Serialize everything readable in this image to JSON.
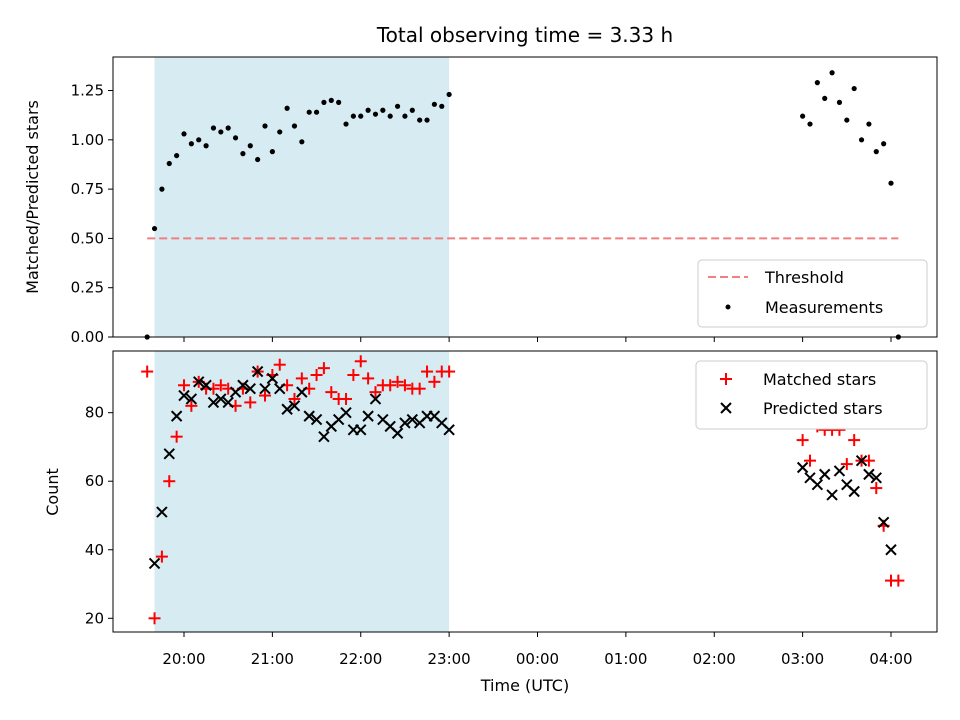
{
  "chart_data": [
    {
      "type": "scatter",
      "title": "Total observing time = 3.33 h",
      "xlabel": "",
      "ylabel": "Matched/Predicted stars",
      "x_unit": "hours since 19:00 UTC on the x axis is shown as clock times",
      "xlim": [
        "19:10",
        "04:30"
      ],
      "ylim": [
        0,
        1.42
      ],
      "yticks": [
        "0.00",
        "0.25",
        "0.50",
        "0.75",
        "1.00",
        "1.25"
      ],
      "xticks": [
        "20:00",
        "21:00",
        "22:00",
        "23:00",
        "00:00",
        "01:00",
        "02:00",
        "03:00",
        "04:00"
      ],
      "shaded_range": [
        "19:40",
        "23:00"
      ],
      "legend_position": "lower right",
      "series": [
        {
          "name": "Threshold",
          "kind": "dashed-line",
          "color": "#f08080",
          "x": [
            "19:35",
            "04:05"
          ],
          "y": [
            0.5,
            0.5
          ]
        },
        {
          "name": "Measurements",
          "kind": "points",
          "color": "#000000",
          "x": [
            "19:35",
            "19:40",
            "19:45",
            "19:50",
            "19:55",
            "20:00",
            "20:05",
            "20:10",
            "20:15",
            "20:20",
            "20:25",
            "20:30",
            "20:35",
            "20:40",
            "20:45",
            "20:50",
            "20:55",
            "21:00",
            "21:05",
            "21:10",
            "21:15",
            "21:20",
            "21:25",
            "21:30",
            "21:35",
            "21:40",
            "21:45",
            "21:50",
            "21:55",
            "22:00",
            "22:05",
            "22:10",
            "22:15",
            "22:20",
            "22:25",
            "22:30",
            "22:35",
            "22:40",
            "22:45",
            "22:50",
            "22:55",
            "23:00",
            "03:00",
            "03:05",
            "03:10",
            "03:15",
            "03:20",
            "03:25",
            "03:30",
            "03:35",
            "03:40",
            "03:45",
            "03:50",
            "03:55",
            "04:00",
            "04:05"
          ],
          "y": [
            0.0,
            0.55,
            0.75,
            0.88,
            0.92,
            1.03,
            0.98,
            1.0,
            0.97,
            1.06,
            1.04,
            1.06,
            1.01,
            0.93,
            0.97,
            0.9,
            1.07,
            0.94,
            1.04,
            1.16,
            1.07,
            0.99,
            1.14,
            1.14,
            1.19,
            1.2,
            1.19,
            1.08,
            1.12,
            1.12,
            1.15,
            1.13,
            1.15,
            1.12,
            1.17,
            1.12,
            1.15,
            1.1,
            1.1,
            1.18,
            1.17,
            1.23,
            1.12,
            1.08,
            1.29,
            1.21,
            1.34,
            1.19,
            1.1,
            1.26,
            1.0,
            1.08,
            0.94,
            0.98,
            0.78,
            0.0
          ]
        }
      ]
    },
    {
      "type": "scatter",
      "title": "",
      "xlabel": "Time (UTC)",
      "ylabel": "Count",
      "xlim": [
        "19:10",
        "04:30"
      ],
      "ylim": [
        16,
        98
      ],
      "yticks": [
        "20",
        "40",
        "60",
        "80"
      ],
      "xticks": [
        "20:00",
        "21:00",
        "22:00",
        "23:00",
        "00:00",
        "01:00",
        "02:00",
        "03:00",
        "04:00"
      ],
      "shaded_range": [
        "19:40",
        "23:00"
      ],
      "legend_position": "upper right",
      "series": [
        {
          "name": "Matched stars",
          "marker": "+",
          "color": "#ff0000",
          "x": [
            "19:35",
            "19:40",
            "19:45",
            "19:50",
            "19:55",
            "20:00",
            "20:05",
            "20:10",
            "20:15",
            "20:20",
            "20:25",
            "20:30",
            "20:35",
            "20:40",
            "20:45",
            "20:50",
            "20:55",
            "21:00",
            "21:05",
            "21:10",
            "21:15",
            "21:20",
            "21:25",
            "21:30",
            "21:35",
            "21:40",
            "21:45",
            "21:50",
            "21:55",
            "22:00",
            "22:05",
            "22:10",
            "22:15",
            "22:20",
            "22:25",
            "22:30",
            "22:35",
            "22:40",
            "22:45",
            "22:50",
            "22:55",
            "23:00",
            "03:00",
            "03:05",
            "03:10",
            "03:15",
            "03:20",
            "03:25",
            "03:30",
            "03:35",
            "03:40",
            "03:45",
            "03:50",
            "03:55",
            "04:00",
            "04:05"
          ],
          "y": [
            92,
            20,
            38,
            60,
            73,
            88,
            82,
            89,
            87,
            87,
            88,
            87,
            82,
            87,
            83,
            92,
            85,
            91,
            94,
            88,
            84,
            90,
            87,
            91,
            93,
            86,
            84,
            84,
            91,
            95,
            90,
            86,
            88,
            88,
            89,
            88,
            87,
            87,
            92,
            89,
            92,
            92,
            72,
            66,
            76,
            75,
            75,
            75,
            65,
            72,
            66,
            66,
            58,
            47,
            31,
            31
          ]
        },
        {
          "name": "Predicted stars",
          "marker": "x",
          "color": "#000000",
          "x": [
            "19:40",
            "19:45",
            "19:50",
            "19:55",
            "20:00",
            "20:05",
            "20:10",
            "20:15",
            "20:20",
            "20:25",
            "20:30",
            "20:35",
            "20:40",
            "20:45",
            "20:50",
            "20:55",
            "21:00",
            "21:05",
            "21:10",
            "21:15",
            "21:20",
            "21:25",
            "21:30",
            "21:35",
            "21:40",
            "21:45",
            "21:50",
            "21:55",
            "22:00",
            "22:05",
            "22:10",
            "22:15",
            "22:20",
            "22:25",
            "22:30",
            "22:35",
            "22:40",
            "22:45",
            "22:50",
            "22:55",
            "23:00",
            "03:00",
            "03:05",
            "03:10",
            "03:15",
            "03:20",
            "03:25",
            "03:30",
            "03:35",
            "03:40",
            "03:45",
            "03:50",
            "03:55",
            "04:00"
          ],
          "y": [
            36,
            51,
            68,
            79,
            85,
            84,
            89,
            88,
            83,
            84,
            83,
            86,
            88,
            87,
            92,
            87,
            90,
            87,
            81,
            82,
            86,
            79,
            78,
            73,
            76,
            78,
            80,
            75,
            75,
            79,
            84,
            78,
            76,
            74,
            77,
            78,
            77,
            79,
            79,
            77,
            75,
            64,
            61,
            59,
            62,
            56,
            63,
            59,
            57,
            66,
            62,
            61,
            48,
            40
          ]
        }
      ]
    }
  ]
}
